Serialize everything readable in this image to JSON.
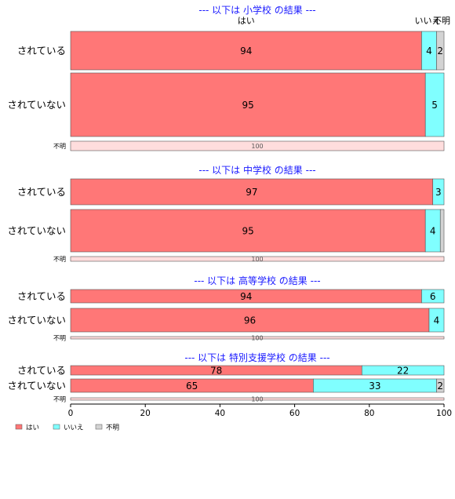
{
  "colors": {
    "yes": "#ff7777",
    "no": "#80ffff",
    "unknown": "#d3d3d3",
    "unknown_only": "#ffdddd",
    "title": "#1a1aff"
  },
  "chart_data": {
    "type": "bar",
    "orientation": "horizontal",
    "stacked": true,
    "xlim": [
      0,
      100
    ],
    "xticks": [
      "0",
      "20",
      "40",
      "60",
      "80",
      "100"
    ],
    "legend": {
      "placement": "bottom-left",
      "items": [
        "はい",
        "いいえ",
        "不明"
      ]
    },
    "column_headers": [
      "はい",
      "いいえ",
      "不明"
    ],
    "sections": [
      {
        "title": "--- 以下は 小学校 の結果 ---",
        "rows": [
          {
            "label": "されている",
            "values": [
              94,
              4,
              2
            ]
          },
          {
            "label": "されていない",
            "values": [
              95,
              5,
              0
            ]
          },
          {
            "label": "不明",
            "values": [
              0,
              0,
              100
            ]
          }
        ]
      },
      {
        "title": "--- 以下は 中学校 の結果 ---",
        "rows": [
          {
            "label": "されている",
            "values": [
              97,
              3,
              0
            ]
          },
          {
            "label": "されていない",
            "values": [
              95,
              4,
              1
            ]
          },
          {
            "label": "不明",
            "values": [
              0,
              0,
              100
            ]
          }
        ]
      },
      {
        "title": "--- 以下は 高等学校 の結果 ---",
        "rows": [
          {
            "label": "されている",
            "values": [
              94,
              6,
              0
            ]
          },
          {
            "label": "されていない",
            "values": [
              96,
              4,
              0
            ]
          },
          {
            "label": "不明",
            "values": [
              0,
              0,
              100
            ]
          }
        ]
      },
      {
        "title": "--- 以下は 特別支援学校 の結果 ---",
        "rows": [
          {
            "label": "されている",
            "values": [
              78,
              22,
              0
            ]
          },
          {
            "label": "されていない",
            "values": [
              65,
              33,
              2
            ]
          },
          {
            "label": "不明",
            "values": [
              0,
              0,
              100
            ]
          }
        ]
      }
    ]
  }
}
